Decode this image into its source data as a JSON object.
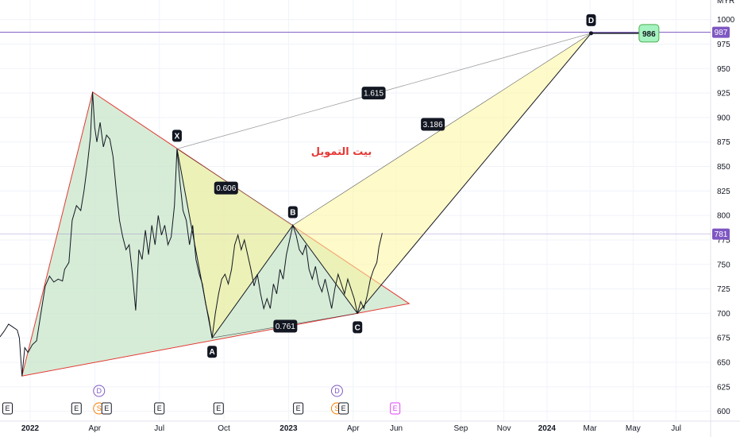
{
  "chart_data": {
    "type": "line",
    "title": "",
    "annotation_text": "بيت التمويل",
    "colors": {
      "price": "#131722",
      "horizontal_line": "#7e57c2",
      "triangle_fill": "#c8e6c9",
      "pattern_fill": "#fff59d",
      "edge": "#e53935",
      "label_bg": "#131722",
      "target_bg": "#a5f3c0"
    },
    "y_axis": {
      "ticks": [
        600,
        625,
        650,
        675,
        700,
        725,
        750,
        775,
        800,
        825,
        850,
        875,
        900,
        925,
        950,
        975,
        1000
      ],
      "ylim": [
        590,
        1020
      ],
      "position": "right",
      "top_label": "MYR"
    },
    "x_axis": {
      "ticks": [
        {
          "label": "2022",
          "t": 4.0
        },
        {
          "label": "Apr",
          "t": 7.0
        },
        {
          "label": "Jul",
          "t": 10.0
        },
        {
          "label": "Oct",
          "t": 13.0
        },
        {
          "label": "2023",
          "t": 16.0
        },
        {
          "label": "Apr",
          "t": 19.0
        },
        {
          "label": "Jun",
          "t": 21.0
        },
        {
          "label": "Sep",
          "t": 24.0
        },
        {
          "label": "Nov",
          "t": 26.0
        },
        {
          "label": "2024",
          "t": 28.0
        },
        {
          "label": "Mar",
          "t": 30.0
        },
        {
          "label": "May",
          "t": 32.0
        },
        {
          "label": "Jul",
          "t": 34.0
        }
      ],
      "xlim": [
        2.6,
        35.6
      ]
    },
    "price_series": [
      {
        "t": 2.6,
        "y": 676
      },
      {
        "t": 2.8,
        "y": 682
      },
      {
        "t": 3.0,
        "y": 689
      },
      {
        "t": 3.2,
        "y": 686
      },
      {
        "t": 3.4,
        "y": 683
      },
      {
        "t": 3.5,
        "y": 675
      },
      {
        "t": 3.62,
        "y": 636
      },
      {
        "t": 3.75,
        "y": 665
      },
      {
        "t": 3.9,
        "y": 660
      },
      {
        "t": 4.1,
        "y": 668
      },
      {
        "t": 4.3,
        "y": 672
      },
      {
        "t": 4.5,
        "y": 700
      },
      {
        "t": 4.7,
        "y": 728
      },
      {
        "t": 4.9,
        "y": 738
      },
      {
        "t": 5.1,
        "y": 732
      },
      {
        "t": 5.3,
        "y": 735
      },
      {
        "t": 5.5,
        "y": 733
      },
      {
        "t": 5.6,
        "y": 745
      },
      {
        "t": 5.8,
        "y": 752
      },
      {
        "t": 5.95,
        "y": 795
      },
      {
        "t": 6.15,
        "y": 810
      },
      {
        "t": 6.35,
        "y": 805
      },
      {
        "t": 6.5,
        "y": 825
      },
      {
        "t": 6.65,
        "y": 850
      },
      {
        "t": 6.8,
        "y": 880
      },
      {
        "t": 6.9,
        "y": 926
      },
      {
        "t": 7.0,
        "y": 890
      },
      {
        "t": 7.1,
        "y": 875
      },
      {
        "t": 7.25,
        "y": 895
      },
      {
        "t": 7.4,
        "y": 870
      },
      {
        "t": 7.55,
        "y": 882
      },
      {
        "t": 7.7,
        "y": 878
      },
      {
        "t": 7.85,
        "y": 860
      },
      {
        "t": 8.0,
        "y": 825
      },
      {
        "t": 8.15,
        "y": 795
      },
      {
        "t": 8.3,
        "y": 778
      },
      {
        "t": 8.45,
        "y": 765
      },
      {
        "t": 8.6,
        "y": 770
      },
      {
        "t": 8.75,
        "y": 740
      },
      {
        "t": 8.9,
        "y": 703
      },
      {
        "t": 9.05,
        "y": 765
      },
      {
        "t": 9.2,
        "y": 755
      },
      {
        "t": 9.35,
        "y": 785
      },
      {
        "t": 9.5,
        "y": 760
      },
      {
        "t": 9.65,
        "y": 790
      },
      {
        "t": 9.8,
        "y": 770
      },
      {
        "t": 9.95,
        "y": 800
      },
      {
        "t": 10.1,
        "y": 780
      },
      {
        "t": 10.25,
        "y": 790
      },
      {
        "t": 10.4,
        "y": 770
      },
      {
        "t": 10.55,
        "y": 778
      },
      {
        "t": 10.7,
        "y": 810
      },
      {
        "t": 10.82,
        "y": 868
      },
      {
        "t": 10.95,
        "y": 835
      },
      {
        "t": 11.1,
        "y": 805
      },
      {
        "t": 11.25,
        "y": 795
      },
      {
        "t": 11.4,
        "y": 770
      },
      {
        "t": 11.55,
        "y": 790
      },
      {
        "t": 11.7,
        "y": 755
      },
      {
        "t": 11.85,
        "y": 740
      },
      {
        "t": 12.0,
        "y": 730
      },
      {
        "t": 12.15,
        "y": 710
      },
      {
        "t": 12.3,
        "y": 695
      },
      {
        "t": 12.45,
        "y": 675
      },
      {
        "t": 12.6,
        "y": 700
      },
      {
        "t": 12.75,
        "y": 720
      },
      {
        "t": 12.9,
        "y": 735
      },
      {
        "t": 13.05,
        "y": 740
      },
      {
        "t": 13.2,
        "y": 730
      },
      {
        "t": 13.35,
        "y": 745
      },
      {
        "t": 13.5,
        "y": 770
      },
      {
        "t": 13.65,
        "y": 780
      },
      {
        "t": 13.8,
        "y": 765
      },
      {
        "t": 13.95,
        "y": 775
      },
      {
        "t": 14.1,
        "y": 760
      },
      {
        "t": 14.25,
        "y": 745
      },
      {
        "t": 14.4,
        "y": 728
      },
      {
        "t": 14.55,
        "y": 740
      },
      {
        "t": 14.7,
        "y": 720
      },
      {
        "t": 14.85,
        "y": 705
      },
      {
        "t": 15.0,
        "y": 715
      },
      {
        "t": 15.15,
        "y": 705
      },
      {
        "t": 15.3,
        "y": 730
      },
      {
        "t": 15.45,
        "y": 720
      },
      {
        "t": 15.6,
        "y": 745
      },
      {
        "t": 15.75,
        "y": 735
      },
      {
        "t": 15.9,
        "y": 760
      },
      {
        "t": 16.05,
        "y": 775
      },
      {
        "t": 16.2,
        "y": 790
      },
      {
        "t": 16.35,
        "y": 780
      },
      {
        "t": 16.5,
        "y": 765
      },
      {
        "t": 16.65,
        "y": 760
      },
      {
        "t": 16.8,
        "y": 770
      },
      {
        "t": 16.95,
        "y": 745
      },
      {
        "t": 17.1,
        "y": 735
      },
      {
        "t": 17.25,
        "y": 748
      },
      {
        "t": 17.4,
        "y": 730
      },
      {
        "t": 17.55,
        "y": 722
      },
      {
        "t": 17.7,
        "y": 735
      },
      {
        "t": 17.85,
        "y": 720
      },
      {
        "t": 18.0,
        "y": 705
      },
      {
        "t": 18.15,
        "y": 725
      },
      {
        "t": 18.3,
        "y": 740
      },
      {
        "t": 18.45,
        "y": 730
      },
      {
        "t": 18.6,
        "y": 720
      },
      {
        "t": 18.75,
        "y": 735
      },
      {
        "t": 18.9,
        "y": 725
      },
      {
        "t": 19.05,
        "y": 715
      },
      {
        "t": 19.2,
        "y": 700
      },
      {
        "t": 19.35,
        "y": 712
      },
      {
        "t": 19.5,
        "y": 705
      },
      {
        "t": 19.65,
        "y": 718
      },
      {
        "t": 19.8,
        "y": 735
      },
      {
        "t": 19.95,
        "y": 745
      },
      {
        "t": 20.1,
        "y": 752
      },
      {
        "t": 20.2,
        "y": 768
      },
      {
        "t": 20.35,
        "y": 782
      }
    ],
    "pattern_points": [
      {
        "label": "X",
        "t": 10.82,
        "y": 868
      },
      {
        "label": "A",
        "t": 12.45,
        "y": 675
      },
      {
        "label": "B",
        "t": 16.2,
        "y": 790
      },
      {
        "label": "C",
        "t": 19.2,
        "y": 700
      },
      {
        "label": "D",
        "t": 30.05,
        "y": 986
      }
    ],
    "triangle": [
      {
        "t": 3.62,
        "y": 636
      },
      {
        "t": 6.9,
        "y": 926
      },
      {
        "t": 21.6,
        "y": 710
      }
    ],
    "fib_ratios": [
      {
        "label": "0.606",
        "t": 13.1,
        "y": 828
      },
      {
        "label": "0.761",
        "t": 15.85,
        "y": 687
      },
      {
        "label": "3.186",
        "t": 22.7,
        "y": 893
      },
      {
        "label": "1.615",
        "t": 19.95,
        "y": 925
      }
    ],
    "horizontal_lines": [
      {
        "y": 987,
        "label": "987",
        "color": "#7e57c2"
      },
      {
        "y": 781,
        "label": "781",
        "color": "#7e57c2"
      }
    ],
    "target": {
      "label": "986",
      "t_start": 30.05,
      "t_end": 32.35,
      "y": 986
    },
    "events": [
      {
        "t": 2.95,
        "text": "E",
        "row": 0,
        "color": "#131722"
      },
      {
        "t": 6.15,
        "text": "E",
        "row": 0,
        "color": "#131722"
      },
      {
        "t": 7.2,
        "text": "S",
        "row": 0,
        "color": "#f57c00"
      },
      {
        "t": 7.55,
        "text": "E",
        "row": 0,
        "color": "#131722"
      },
      {
        "t": 7.2,
        "text": "D",
        "row": 1,
        "color": "#7e57c2"
      },
      {
        "t": 10.0,
        "text": "E",
        "row": 0,
        "color": "#131722"
      },
      {
        "t": 12.75,
        "text": "E",
        "row": 0,
        "color": "#131722"
      },
      {
        "t": 16.45,
        "text": "E",
        "row": 0,
        "color": "#131722"
      },
      {
        "t": 18.25,
        "text": "S",
        "row": 0,
        "color": "#f57c00"
      },
      {
        "t": 18.55,
        "text": "E",
        "row": 0,
        "color": "#131722"
      },
      {
        "t": 18.25,
        "text": "D",
        "row": 1,
        "color": "#7e57c2"
      },
      {
        "t": 20.95,
        "text": "E",
        "row": 0,
        "color": "#e040fb"
      }
    ]
  }
}
